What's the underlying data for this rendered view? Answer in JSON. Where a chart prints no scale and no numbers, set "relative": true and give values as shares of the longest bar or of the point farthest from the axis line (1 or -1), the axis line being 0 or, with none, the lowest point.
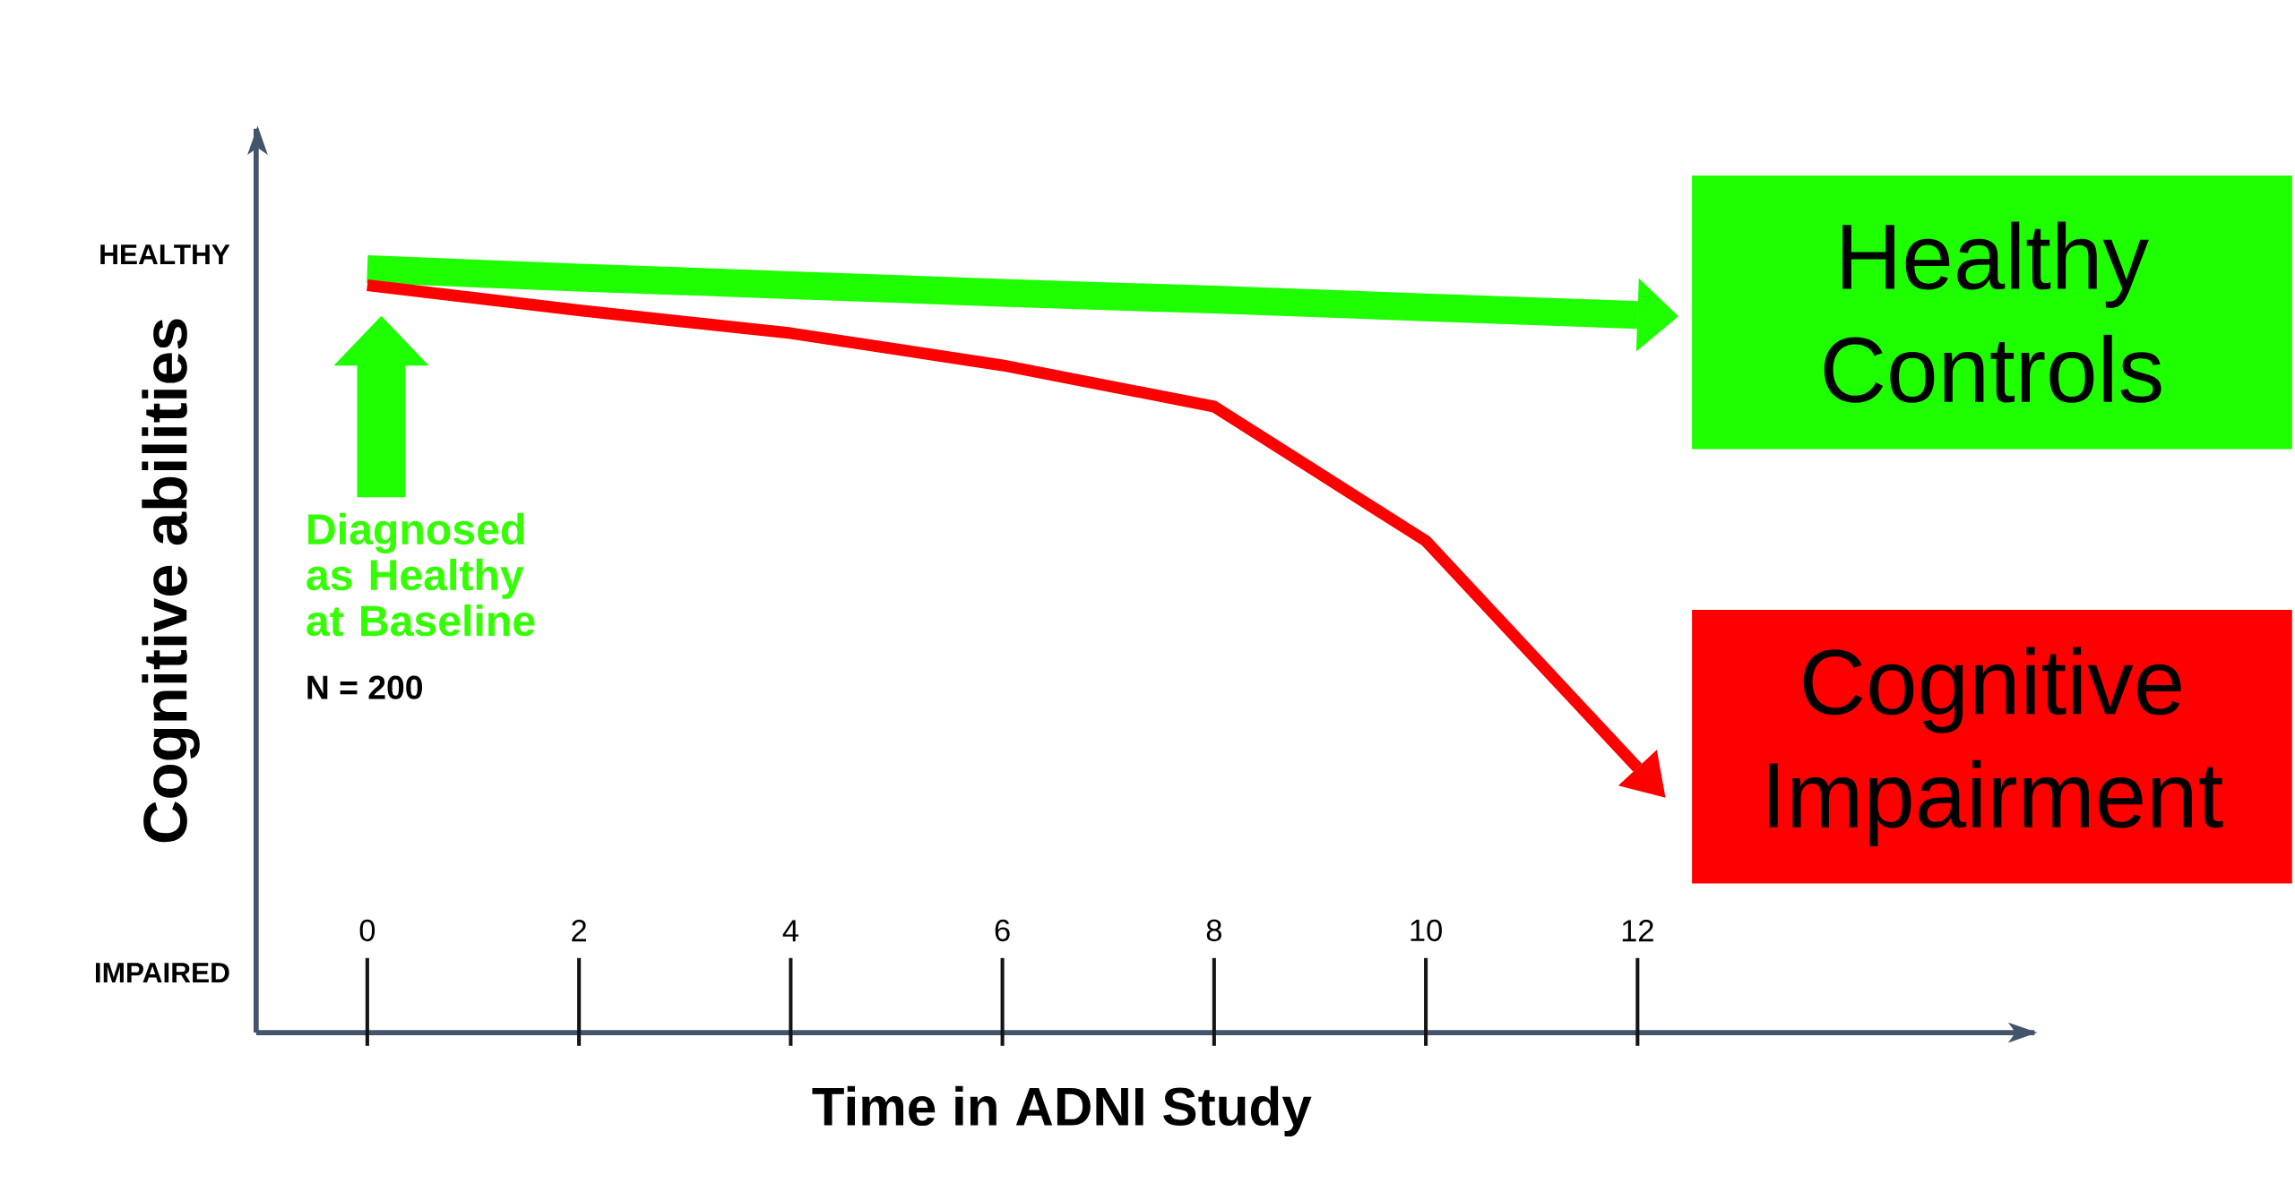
{
  "chart_data": {
    "type": "line",
    "relative": true,
    "xlabel": "Time in ADNI Study",
    "ylabel": "Cognitive abilities",
    "categories": [
      "0",
      "2",
      "4",
      "6",
      "8",
      "10",
      "12"
    ],
    "series": [
      {
        "name": "Healthy Controls",
        "color": "#1eff00",
        "values": [
          1.0,
          0.989,
          0.979,
          0.969,
          0.96,
          0.95,
          0.94
        ]
      },
      {
        "name": "Cognitive Impairment",
        "color": "#ff0000",
        "values": [
          0.979,
          0.946,
          0.916,
          0.874,
          0.82,
          0.644,
          0.347
        ]
      }
    ],
    "annotations": [
      "HEALTHY",
      "IMPAIRED",
      "Diagnosed as Healthy at Baseline",
      "N = 200"
    ],
    "legend": "right"
  }
}
